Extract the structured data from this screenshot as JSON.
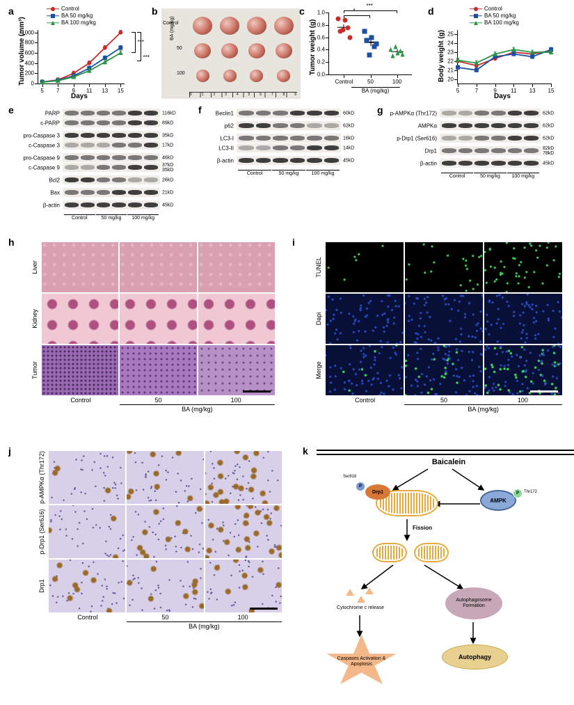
{
  "panel_a": {
    "label": "a",
    "type": "line",
    "y_label": "Tumor volume (mm³)",
    "x_label": "Days",
    "x_ticks": [
      5,
      7,
      9,
      11,
      13,
      15
    ],
    "y_ticks": [
      0,
      200,
      400,
      600,
      800,
      1000
    ],
    "ylim": [
      0,
      1050
    ],
    "xlim": [
      4.5,
      15.5
    ],
    "series": [
      {
        "name": "Control",
        "color": "#c92a2a",
        "marker": "circle",
        "x": [
          5,
          7,
          9,
          11,
          13,
          15
        ],
        "y": [
          30,
          70,
          200,
          400,
          700,
          1000
        ]
      },
      {
        "name": "BA 50 mg/kg",
        "color": "#1c4fa1",
        "marker": "square",
        "x": [
          5,
          7,
          9,
          11,
          13,
          15
        ],
        "y": [
          28,
          60,
          150,
          300,
          500,
          700
        ]
      },
      {
        "name": "BA 100 mg/kg",
        "color": "#2b9348",
        "marker": "triangle",
        "x": [
          5,
          7,
          9,
          11,
          13,
          15
        ],
        "y": [
          25,
          55,
          130,
          250,
          420,
          600
        ]
      }
    ],
    "sig": [
      {
        "groups": [
          "Control",
          "BA 50 mg/kg"
        ],
        "label": "***"
      },
      {
        "groups": [
          "Control",
          "BA 100 mg/kg"
        ],
        "label": "***"
      }
    ],
    "label_fontsize": 10,
    "tick_fontsize": 8
  },
  "panel_b": {
    "label": "b",
    "type": "photo",
    "rows": [
      {
        "label": "Control",
        "n": 4,
        "size": 28
      },
      {
        "label": "50",
        "n": 4,
        "size": 24
      },
      {
        "label": "100",
        "n": 4,
        "size": 19
      }
    ],
    "group_title": "BA (mg/kg)",
    "ruler_marks": [
      0,
      1,
      2,
      3,
      4,
      5,
      6,
      7,
      8,
      9
    ],
    "background": "#e8e4de"
  },
  "panel_c": {
    "label": "c",
    "type": "scatter",
    "y_label": "Tumor weight (g)",
    "y_ticks": [
      "0.0",
      "0.2",
      "0.4",
      "0.6",
      "0.8",
      "1.0"
    ],
    "ylim": [
      0,
      1.0
    ],
    "groups": [
      {
        "name": "Control",
        "color": "#c92a2a",
        "marker": "circle",
        "values": [
          0.9,
          0.7,
          0.72,
          0.88,
          0.75,
          0.6
        ],
        "mean": 0.76,
        "sem": 0.05
      },
      {
        "name": "50",
        "color": "#1c4fa1",
        "marker": "square",
        "values": [
          0.7,
          0.55,
          0.32,
          0.6,
          0.45,
          0.5
        ],
        "mean": 0.52,
        "sem": 0.06
      },
      {
        "name": "100",
        "color": "#2b9348",
        "marker": "triangle",
        "values": [
          0.4,
          0.3,
          0.45,
          0.35,
          0.38,
          0.33
        ],
        "mean": 0.37,
        "sem": 0.03
      }
    ],
    "x_group_label": "BA (mg/kg)",
    "sig": [
      {
        "from": "Control",
        "to": "50",
        "label": "*",
        "y": 0.95
      },
      {
        "from": "Control",
        "to": "100",
        "label": "***",
        "y": 1.03
      }
    ]
  },
  "panel_d": {
    "label": "d",
    "type": "line",
    "y_label": "Body weight (g)",
    "x_label": "Days",
    "x_ticks": [
      5,
      7,
      9,
      11,
      13,
      15
    ],
    "y_ticks": [
      20,
      21,
      22,
      23,
      24,
      25
    ],
    "ylim": [
      19.5,
      25.5
    ],
    "series": [
      {
        "name": "Control",
        "color": "#c92a2a",
        "marker": "circle",
        "x": [
          5,
          7,
          9,
          11,
          13,
          15
        ],
        "y": [
          22.0,
          21.5,
          22.3,
          23.0,
          22.8,
          23.2
        ]
      },
      {
        "name": "BA 50 mg/kg",
        "color": "#1c4fa1",
        "marker": "square",
        "x": [
          5,
          7,
          9,
          11,
          13,
          15
        ],
        "y": [
          21.3,
          21.0,
          22.5,
          22.8,
          22.5,
          23.3
        ]
      },
      {
        "name": "BA 100 mg/kg",
        "color": "#2b9348",
        "marker": "triangle",
        "x": [
          5,
          7,
          9,
          11,
          13,
          15
        ],
        "y": [
          22.1,
          21.8,
          22.8,
          23.3,
          23.0,
          23.0
        ]
      }
    ],
    "error_cap": 0.6
  },
  "panel_e": {
    "label": "e",
    "type": "western",
    "groups": [
      "Control",
      "50 mg/kg",
      "100 mg/kg"
    ],
    "lanes_per_group": 2,
    "rows": [
      {
        "labels": [
          "PARP",
          "c-PARP"
        ],
        "kd": [
          "116kD",
          "89kD"
        ],
        "double": true,
        "intensity": [
          "m",
          "m",
          "m",
          "m",
          "s",
          "s"
        ]
      },
      {
        "labels": [
          "pro-Caspase 3",
          "c-Caspase 3"
        ],
        "kd": [
          "35kD",
          "17kD"
        ],
        "double": true,
        "intensity": [
          "s",
          "s",
          "s",
          "s",
          "s",
          "s"
        ],
        "lower_intensity": [
          "w",
          "w",
          "w",
          "m",
          "m",
          "s"
        ]
      },
      {
        "labels": [
          "pro-Caspase 9",
          "c-Caspase 9"
        ],
        "kd": [
          "46kD",
          "37kD",
          "35kD"
        ],
        "double": true,
        "intensity": [
          "m",
          "m",
          "m",
          "m",
          "m",
          "m"
        ],
        "lower_intensity": [
          "w",
          "w",
          "m",
          "m",
          "s",
          "s"
        ]
      },
      {
        "labels": [
          "Bcl2"
        ],
        "kd": [
          "26kD"
        ],
        "intensity": [
          "s",
          "s",
          "m",
          "m",
          "w",
          "w"
        ]
      },
      {
        "labels": [
          "Bax"
        ],
        "kd": [
          "21kD"
        ],
        "intensity": [
          "m",
          "m",
          "m",
          "s",
          "s",
          "s"
        ]
      },
      {
        "labels": [
          "β-actin"
        ],
        "kd": [
          "45kD"
        ],
        "intensity": [
          "s",
          "s",
          "s",
          "s",
          "s",
          "s"
        ]
      }
    ]
  },
  "panel_f": {
    "label": "f",
    "type": "western",
    "groups": [
      "Control",
      "50 mg/kg",
      "100 mg/kg"
    ],
    "lanes_per_group": 2,
    "rows": [
      {
        "labels": [
          "Beclin1"
        ],
        "kd": [
          "60kD"
        ],
        "intensity": [
          "m",
          "m",
          "m",
          "s",
          "s",
          "s"
        ]
      },
      {
        "labels": [
          "p62"
        ],
        "kd": [
          "62kD"
        ],
        "intensity": [
          "s",
          "s",
          "m",
          "m",
          "w",
          "w"
        ]
      },
      {
        "labels": [
          "LC3-I",
          "LC3-II"
        ],
        "kd": [
          "16kD",
          "14kD"
        ],
        "double": true,
        "intensity": [
          "m",
          "m",
          "m",
          "m",
          "m",
          "m"
        ],
        "lower_intensity": [
          "w",
          "w",
          "m",
          "m",
          "s",
          "s"
        ]
      },
      {
        "labels": [
          "β-actin"
        ],
        "kd": [
          "45kD"
        ],
        "intensity": [
          "s",
          "s",
          "s",
          "s",
          "s",
          "s"
        ]
      }
    ]
  },
  "panel_g": {
    "label": "g",
    "type": "western",
    "groups": [
      "Control",
      "50 mg/kg",
      "100 mg/kg"
    ],
    "lanes_per_group": 2,
    "rows": [
      {
        "labels": [
          "p-AMPKα (Thr172)"
        ],
        "sub": "(Thr172)",
        "kd": [
          "62kD"
        ],
        "intensity": [
          "w",
          "w",
          "m",
          "m",
          "s",
          "s"
        ]
      },
      {
        "labels": [
          "AMPKα"
        ],
        "kd": [
          "62kD"
        ],
        "intensity": [
          "s",
          "s",
          "s",
          "s",
          "s",
          "s"
        ]
      },
      {
        "labels": [
          "p-Drp1 (Ser616)"
        ],
        "kd": [
          "62kD"
        ],
        "intensity": [
          "w",
          "w",
          "m",
          "m",
          "s",
          "s"
        ]
      },
      {
        "labels": [
          "Drp1"
        ],
        "kd": [
          "82kD",
          "78kD"
        ],
        "intensity": [
          "m",
          "m",
          "m",
          "m",
          "m",
          "m"
        ]
      },
      {
        "labels": [
          "β-actin"
        ],
        "kd": [
          "45kD"
        ],
        "intensity": [
          "s",
          "s",
          "s",
          "s",
          "s",
          "s"
        ]
      }
    ]
  },
  "panel_h": {
    "label": "h",
    "type": "histology",
    "row_labels": [
      "Liver",
      "Kidney",
      "Tumor"
    ],
    "col_labels": [
      "Control",
      "50",
      "100"
    ],
    "col_group": "BA (mg/kg)",
    "tiles": [
      [
        "he_liver",
        "he_liver",
        "he_liver"
      ],
      [
        "he_kidney",
        "he_kidney",
        "he_kidney"
      ],
      [
        "he_tumor_dense",
        "he_tumor_mid",
        "he_tumor_sparse"
      ]
    ],
    "colors": {
      "he_liver": "radial-gradient(circle at 30% 30%, #e8b4c0 2px, transparent 3px) 0 0/14px 14px, #d8a0b0",
      "he_kidney": "radial-gradient(circle at 50% 50%, #b05080 6px, transparent 8px) 0 0/30px 30px, #f0c8d4",
      "he_tumor_dense": "radial-gradient(circle,#4a2860 1px,transparent 2px) 0 0/6px 6px, #9868b0",
      "he_tumor_mid": "radial-gradient(circle,#5a3870 1px,transparent 2px) 0 0/8px 8px, #a878c0",
      "he_tumor_sparse": "radial-gradient(circle,#6a4880 1px,transparent 2px) 0 0/10px 10px, #b890c8"
    },
    "scalebar_width": 40
  },
  "panel_i": {
    "label": "i",
    "type": "fluorescence",
    "row_labels": [
      "TUNEL",
      "Dapi",
      "Merge"
    ],
    "col_labels": [
      "Control",
      "50",
      "100"
    ],
    "col_group": "BA (mg/kg)",
    "intensities": {
      "tunel": [
        {
          "bg": "#000000",
          "dots": 6,
          "dot_color": "#3ac95a"
        },
        {
          "bg": "#000000",
          "dots": 20,
          "dot_color": "#3ac95a"
        },
        {
          "bg": "#000000",
          "dots": 45,
          "dot_color": "#3ac95a"
        }
      ],
      "dapi": [
        {
          "bg": "#081038",
          "dots": 60,
          "dot_color": "#2848c0"
        },
        {
          "bg": "#081038",
          "dots": 60,
          "dot_color": "#2848c0"
        },
        {
          "bg": "#081038",
          "dots": 60,
          "dot_color": "#2848c0"
        }
      ],
      "merge": [
        {
          "bg": "#081038",
          "dots": 60,
          "dot_color": "#2848c0",
          "green": 6
        },
        {
          "bg": "#081038",
          "dots": 60,
          "dot_color": "#2848c0",
          "green": 20
        },
        {
          "bg": "#081038",
          "dots": 60,
          "dot_color": "#2848c0",
          "green": 45
        }
      ]
    },
    "scalebar_width": 40
  },
  "panel_j": {
    "label": "j",
    "type": "ihc",
    "row_labels": [
      "p-AMPKα\n(Thr172)",
      "p-Drp1\n(Ser616)",
      "Drp1"
    ],
    "row_labels_sub": [
      "(Thr172)",
      "(Ser616)",
      ""
    ],
    "col_labels": [
      "Control",
      "50",
      "100"
    ],
    "col_group": "BA (mg/kg)",
    "stain_intensity": [
      [
        3,
        8,
        18
      ],
      [
        3,
        10,
        20
      ],
      [
        8,
        8,
        8
      ]
    ],
    "base_color": "#d8d0e8",
    "dab_color": "#9a6a2a",
    "scalebar_width": 40
  },
  "panel_k": {
    "label": "k",
    "type": "diagram",
    "title": "Baicalein",
    "nodes": {
      "ampk": {
        "label": "AMPK",
        "bg": "#8aa8d8",
        "border": "#4a6898"
      },
      "ampk_p": {
        "label": "Thr172",
        "bg": "#8cd89a"
      },
      "drp1": {
        "label": "Drp1",
        "bg": "#d87838"
      },
      "drp1_p": {
        "label": "Ser616",
        "bg": "#7898d0"
      },
      "fission": {
        "label": "Fission"
      },
      "cytc": {
        "label": "Cytochrome c release"
      },
      "autophagosome": {
        "label": "Autophagosome\nFormation",
        "bg": "#c8a8b8"
      },
      "apoptosis": {
        "label": "Caspases\nActivation\n& Apoptosis",
        "bg": "#f5b88a"
      },
      "autophagy": {
        "label": "Autophagy",
        "bg": "#e8d090"
      }
    },
    "colors": {
      "mito": "#e8a93a",
      "arrow": "#000000",
      "p_circle": "#ffffff"
    }
  },
  "legend": {
    "items": [
      {
        "label": "Control",
        "color": "#c92a2a",
        "marker": "circle"
      },
      {
        "label": "BA 50 mg/kg",
        "color": "#1c4fa1",
        "marker": "square"
      },
      {
        "label": "BA 100 mg/kg",
        "color": "#2b9348",
        "marker": "triangle"
      }
    ]
  }
}
